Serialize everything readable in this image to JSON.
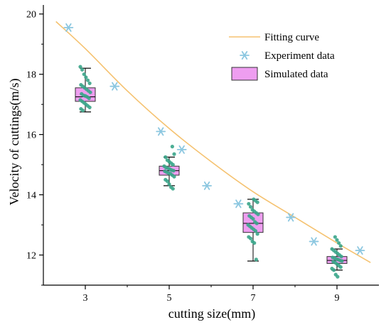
{
  "chart_data": {
    "type": "scatter",
    "xlabel": "cutting size(mm)",
    "ylabel": "Velocity of cuttings(m/s)",
    "xlim": [
      2.0,
      10.0
    ],
    "ylim": [
      11.0,
      20.3
    ],
    "xticks": [
      3,
      5,
      7,
      9
    ],
    "xtick_labels": [
      "3",
      "5",
      "7",
      "9"
    ],
    "yticks": [
      12,
      14,
      16,
      18,
      20
    ],
    "ytick_labels": [
      "12",
      "14",
      "16",
      "18",
      "20"
    ],
    "grid": false,
    "legend_position": "top-right",
    "colors": {
      "fit": "#f5c270",
      "experiment": "#8cc7e0",
      "box_fill": "#ee9ef0",
      "box_stroke": "#333333",
      "points": "#3aa58a",
      "axis": "#000000"
    },
    "legend": [
      {
        "label": "Fitting curve",
        "kind": "line"
      },
      {
        "label": "Experiment data",
        "kind": "star"
      },
      {
        "label": "Simulated data",
        "kind": "box"
      }
    ],
    "series": [
      {
        "name": "Fitting curve",
        "type": "line",
        "x": [
          2.3,
          3.0,
          4.0,
          5.0,
          6.0,
          7.0,
          8.0,
          9.0,
          9.8
        ],
        "y": [
          19.75,
          18.85,
          17.45,
          16.2,
          15.1,
          14.1,
          13.25,
          12.4,
          11.75
        ]
      },
      {
        "name": "Experiment data",
        "type": "scatter",
        "marker": "star",
        "x": [
          2.6,
          3.7,
          4.8,
          5.3,
          5.9,
          6.65,
          7.9,
          8.45,
          9.55
        ],
        "y": [
          19.55,
          17.6,
          16.1,
          15.5,
          14.3,
          13.7,
          13.25,
          12.45,
          12.15
        ]
      },
      {
        "name": "Simulated data",
        "type": "box",
        "groups": [
          {
            "x": 3,
            "min": 16.75,
            "q1": 17.1,
            "median": 17.25,
            "q3": 17.55,
            "max": 18.2,
            "points": [
              18.25,
              18.15,
              18.0,
              17.9,
              17.8,
              17.7,
              17.65,
              17.6,
              17.55,
              17.5,
              17.45,
              17.4,
              17.35,
              17.3,
              17.28,
              17.25,
              17.2,
              17.15,
              17.1,
              17.05,
              17.0,
              16.95,
              16.9,
              16.85,
              16.8
            ]
          },
          {
            "x": 5,
            "min": 14.3,
            "q1": 14.65,
            "median": 14.8,
            "q3": 14.95,
            "max": 15.25,
            "points": [
              15.6,
              15.35,
              15.25,
              15.15,
              15.1,
              15.05,
              15.0,
              14.95,
              14.9,
              14.88,
              14.85,
              14.82,
              14.8,
              14.78,
              14.75,
              14.72,
              14.7,
              14.65,
              14.6,
              14.5,
              14.45,
              14.35,
              14.25,
              14.2
            ]
          },
          {
            "x": 7,
            "min": 11.8,
            "q1": 12.75,
            "median": 13.05,
            "q3": 13.4,
            "max": 13.85,
            "points": [
              13.85,
              13.8,
              13.75,
              13.7,
              13.6,
              13.5,
              13.45,
              13.4,
              13.35,
              13.3,
              13.25,
              13.2,
              13.1,
              13.05,
              13.0,
              12.95,
              12.9,
              12.85,
              12.8,
              12.7,
              12.6,
              12.55,
              12.45,
              12.4,
              11.85
            ]
          },
          {
            "x": 9,
            "min": 11.5,
            "q1": 11.72,
            "median": 11.82,
            "q3": 11.95,
            "max": 12.2,
            "points": [
              12.6,
              12.5,
              12.4,
              12.3,
              12.2,
              12.15,
              12.1,
              12.05,
              12.0,
              11.95,
              11.92,
              11.9,
              11.87,
              11.85,
              11.82,
              11.8,
              11.78,
              11.75,
              11.7,
              11.65,
              11.6,
              11.55,
              11.5,
              11.35,
              11.28
            ]
          }
        ]
      }
    ]
  }
}
